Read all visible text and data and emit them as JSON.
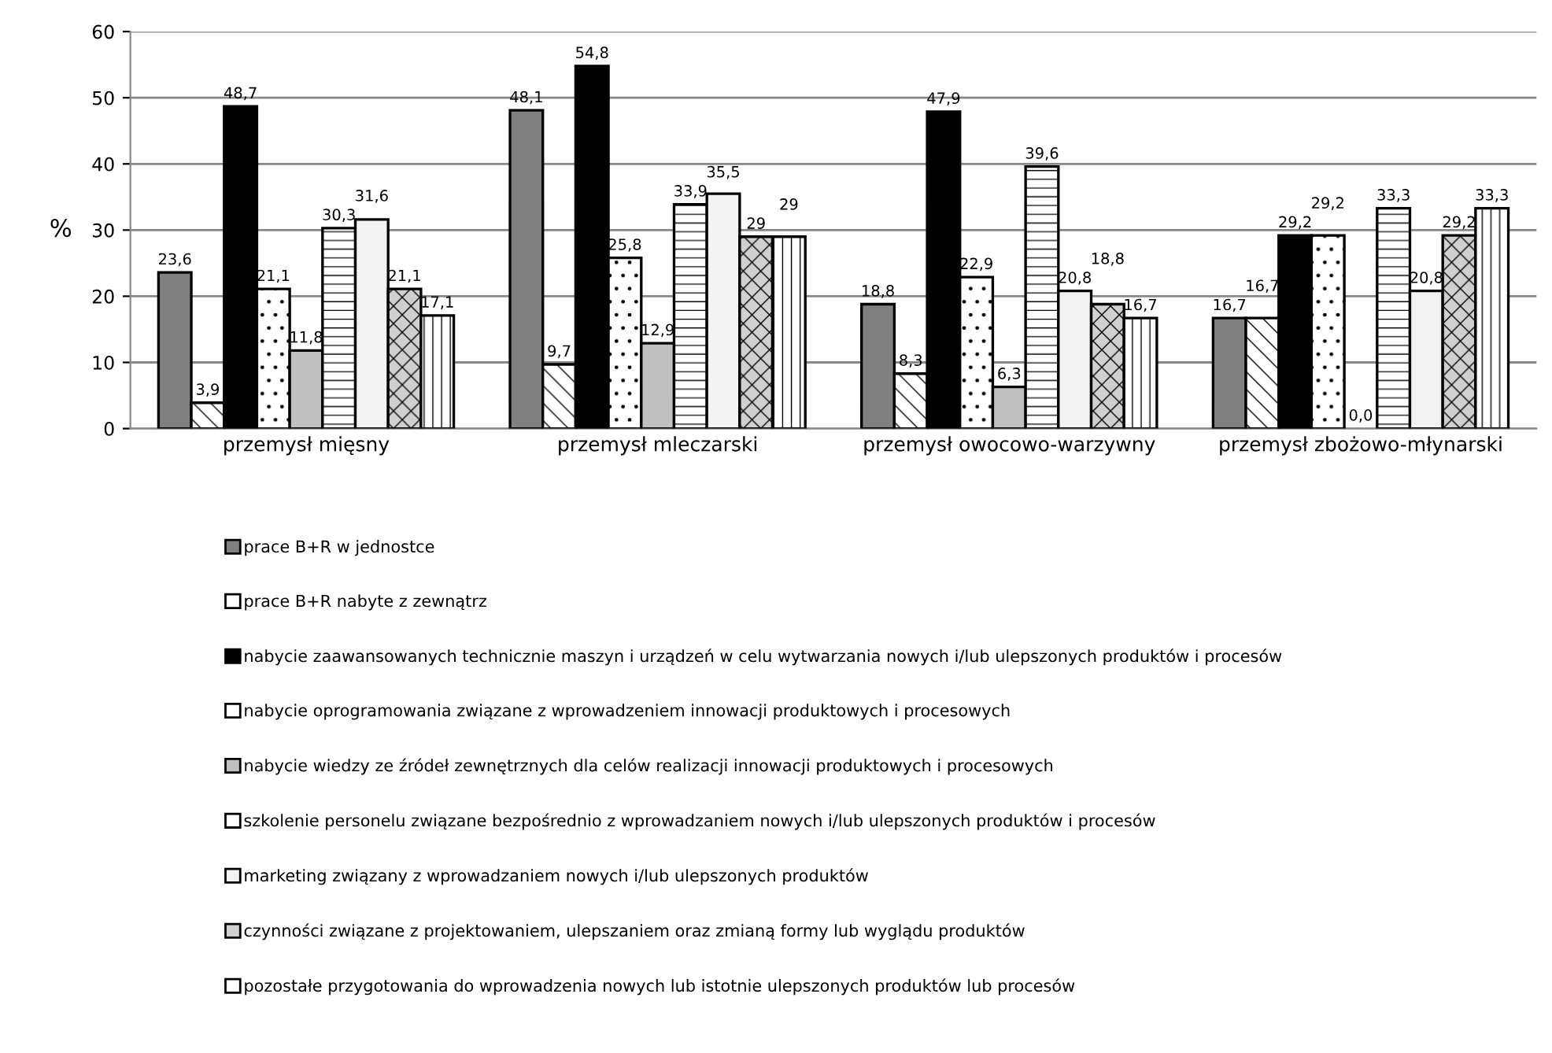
{
  "chart_data": {
    "type": "bar",
    "ylabel": "%",
    "categories": [
      "przemysł mięsny",
      "przemysł mleczarski",
      "przemysł owocowo-warzywny",
      "przemysł zbożowo-młynarski"
    ],
    "ylim": [
      0,
      60
    ],
    "yticks": [
      0,
      10,
      20,
      30,
      40,
      50,
      60
    ],
    "grid": "y",
    "legend": "bottom",
    "series": [
      {
        "name": "prace B+R w jednostce",
        "color": "#808080",
        "values": [
          23.6,
          48.1,
          18.8,
          16.7
        ],
        "value_labels": [
          "23,6",
          "48,1",
          "18,8",
          "16,7"
        ]
      },
      {
        "name": "prace B+R nabyte z zewnątrz",
        "color": "#ffffff",
        "values": [
          3.9,
          9.7,
          8.3,
          16.7
        ],
        "value_labels": [
          "3,9",
          "9,7",
          "8,3",
          "16,7"
        ]
      },
      {
        "name": "nabycie zaawansowanych technicznie maszyn i urządzeń w celu wytwarzania nowych i/lub ulepszonych produktów i procesów",
        "color": "#000000",
        "values": [
          48.7,
          54.8,
          47.9,
          29.2
        ],
        "value_labels": [
          "48,7",
          "54,8",
          "47,9",
          "29,2"
        ]
      },
      {
        "name": "nabycie oprogramowania związane z wprowadzeniem innowacji produktowych i procesowych",
        "color": "#ffffff",
        "values": [
          21.1,
          25.8,
          22.9,
          29.2
        ],
        "value_labels": [
          "21,1",
          "25,8",
          "22,9",
          "29,2"
        ]
      },
      {
        "name": "nabycie wiedzy ze źródeł zewnętrznych dla celów realizacji innowacji produktowych i procesowych",
        "color": "#c0c0c0",
        "values": [
          11.8,
          12.9,
          6.3,
          0.0
        ],
        "value_labels": [
          "11,8",
          "12,9",
          "6,3",
          "0,0"
        ]
      },
      {
        "name": "szkolenie personelu związane bezpośrednio z wprowadzaniem nowych i/lub ulepszonych produktów i procesów",
        "color": "#ffffff",
        "values": [
          30.3,
          33.9,
          39.6,
          33.3
        ],
        "value_labels": [
          "30,3",
          "33,9",
          "39,6",
          "33,3"
        ]
      },
      {
        "name": "marketing związany z wprowadzaniem nowych i/lub ulepszonych produktów",
        "color": "#f2f2f2",
        "values": [
          31.6,
          35.5,
          20.8,
          20.8
        ],
        "value_labels": [
          "31,6",
          "35,5",
          "20,8",
          "20,8"
        ]
      },
      {
        "name": "czynności związane z projektowaniem, ulepszaniem oraz zmianą formy lub wyglądu produktów",
        "color": "#d0d0d0",
        "values": [
          21.1,
          29,
          18.8,
          29.2
        ],
        "value_labels": [
          "21,1",
          "29",
          "18,8",
          "29,2"
        ]
      },
      {
        "name": "pozostałe przygotowania do wprowadzenia nowych lub istotnie ulepszonych produktów lub procesów",
        "color": "#ffffff",
        "values": [
          17.1,
          29,
          16.7,
          33.3
        ],
        "value_labels": [
          "17,1",
          "29",
          "16,7",
          "33,3"
        ]
      }
    ]
  }
}
